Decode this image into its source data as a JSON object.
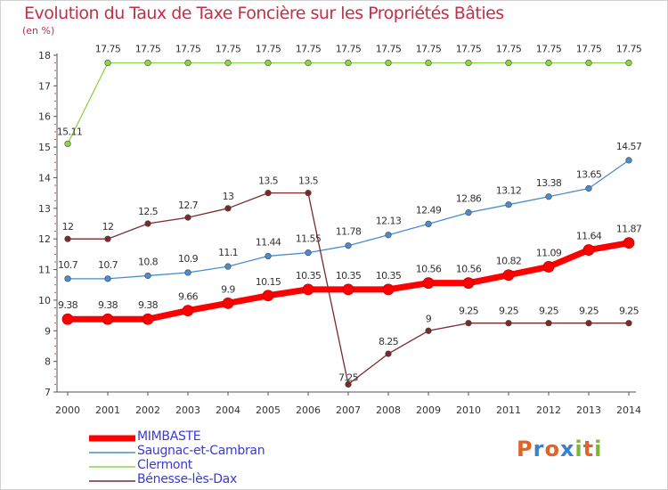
{
  "title": "Evolution du Taux de Taxe Foncière sur les Propriétés Bâties",
  "unit": "(en %)",
  "logo": {
    "letters": [
      "P",
      "r",
      "o",
      "x",
      "i",
      "t",
      "i"
    ],
    "colors": [
      "#e0632a",
      "#3a7fd0",
      "#e0632a",
      "#3a7fd0",
      "#7cb82f",
      "#e0632a",
      "#7cb82f"
    ]
  },
  "chart_data": {
    "type": "line",
    "title": "Evolution du Taux de Taxe Foncière sur les Propriétés Bâties",
    "ylabel": "(en %)",
    "xlabel": "",
    "ylim": [
      7,
      18
    ],
    "yticks": [
      7,
      8,
      9,
      10,
      11,
      12,
      13,
      14,
      15,
      16,
      17,
      18
    ],
    "categories": [
      "2000",
      "2001",
      "2002",
      "2003",
      "2004",
      "2005",
      "2006",
      "2007",
      "2008",
      "2009",
      "2010",
      "2011",
      "2012",
      "2013",
      "2014"
    ],
    "series": [
      {
        "name": "MIMBASTE",
        "color": "#ff0000",
        "values": [
          9.38,
          9.38,
          9.38,
          9.66,
          9.9,
          10.15,
          10.35,
          10.35,
          10.35,
          10.56,
          10.56,
          10.82,
          11.09,
          11.64,
          11.87
        ],
        "labels": [
          "9.38",
          "9.38",
          "9.38",
          "9.66",
          "9.9",
          "10.15",
          "10.35",
          "10.35",
          "10.35",
          "10.56",
          "10.56",
          "10.82",
          "11.09",
          "11.64",
          "11.87"
        ]
      },
      {
        "name": "Saugnac-et-Cambran",
        "color": "#4a8ccc",
        "values": [
          10.7,
          10.7,
          10.8,
          10.9,
          11.1,
          11.44,
          11.55,
          11.78,
          12.13,
          12.49,
          12.86,
          13.12,
          13.38,
          13.65,
          14.57
        ],
        "labels": [
          "10.7",
          "10.7",
          "10.8",
          "10.9",
          "11.1",
          "11.44",
          "11.55",
          "11.78",
          "12.13",
          "12.49",
          "12.86",
          "13.12",
          "13.38",
          "13.65",
          "14.57"
        ]
      },
      {
        "name": "Clermont",
        "color": "#8fd44a",
        "values": [
          15.11,
          17.75,
          17.75,
          17.75,
          17.75,
          17.75,
          17.75,
          17.75,
          17.75,
          17.75,
          17.75,
          17.75,
          17.75,
          17.75,
          17.75
        ],
        "labels": [
          "15.11",
          "17.75",
          "17.75",
          "17.75",
          "17.75",
          "17.75",
          "17.75",
          "17.75",
          "17.75",
          "17.75",
          "17.75",
          "17.75",
          "17.75",
          "17.75",
          "17.75"
        ]
      },
      {
        "name": "Bénesse-lès-Dax",
        "color": "#7a2a2a",
        "values": [
          12,
          12,
          12.5,
          12.7,
          13,
          13.5,
          13.5,
          7.25,
          8.25,
          9,
          9.25,
          9.25,
          9.25,
          9.25,
          9.25
        ],
        "labels": [
          "12",
          "12",
          "12.5",
          "12.7",
          "13",
          "13.5",
          "13.5",
          "7.25",
          "8.25",
          "9",
          "9.25",
          "9.25",
          "9.25",
          "9.25",
          "9.25"
        ]
      }
    ],
    "grid": false,
    "legend": "bottom-left"
  }
}
